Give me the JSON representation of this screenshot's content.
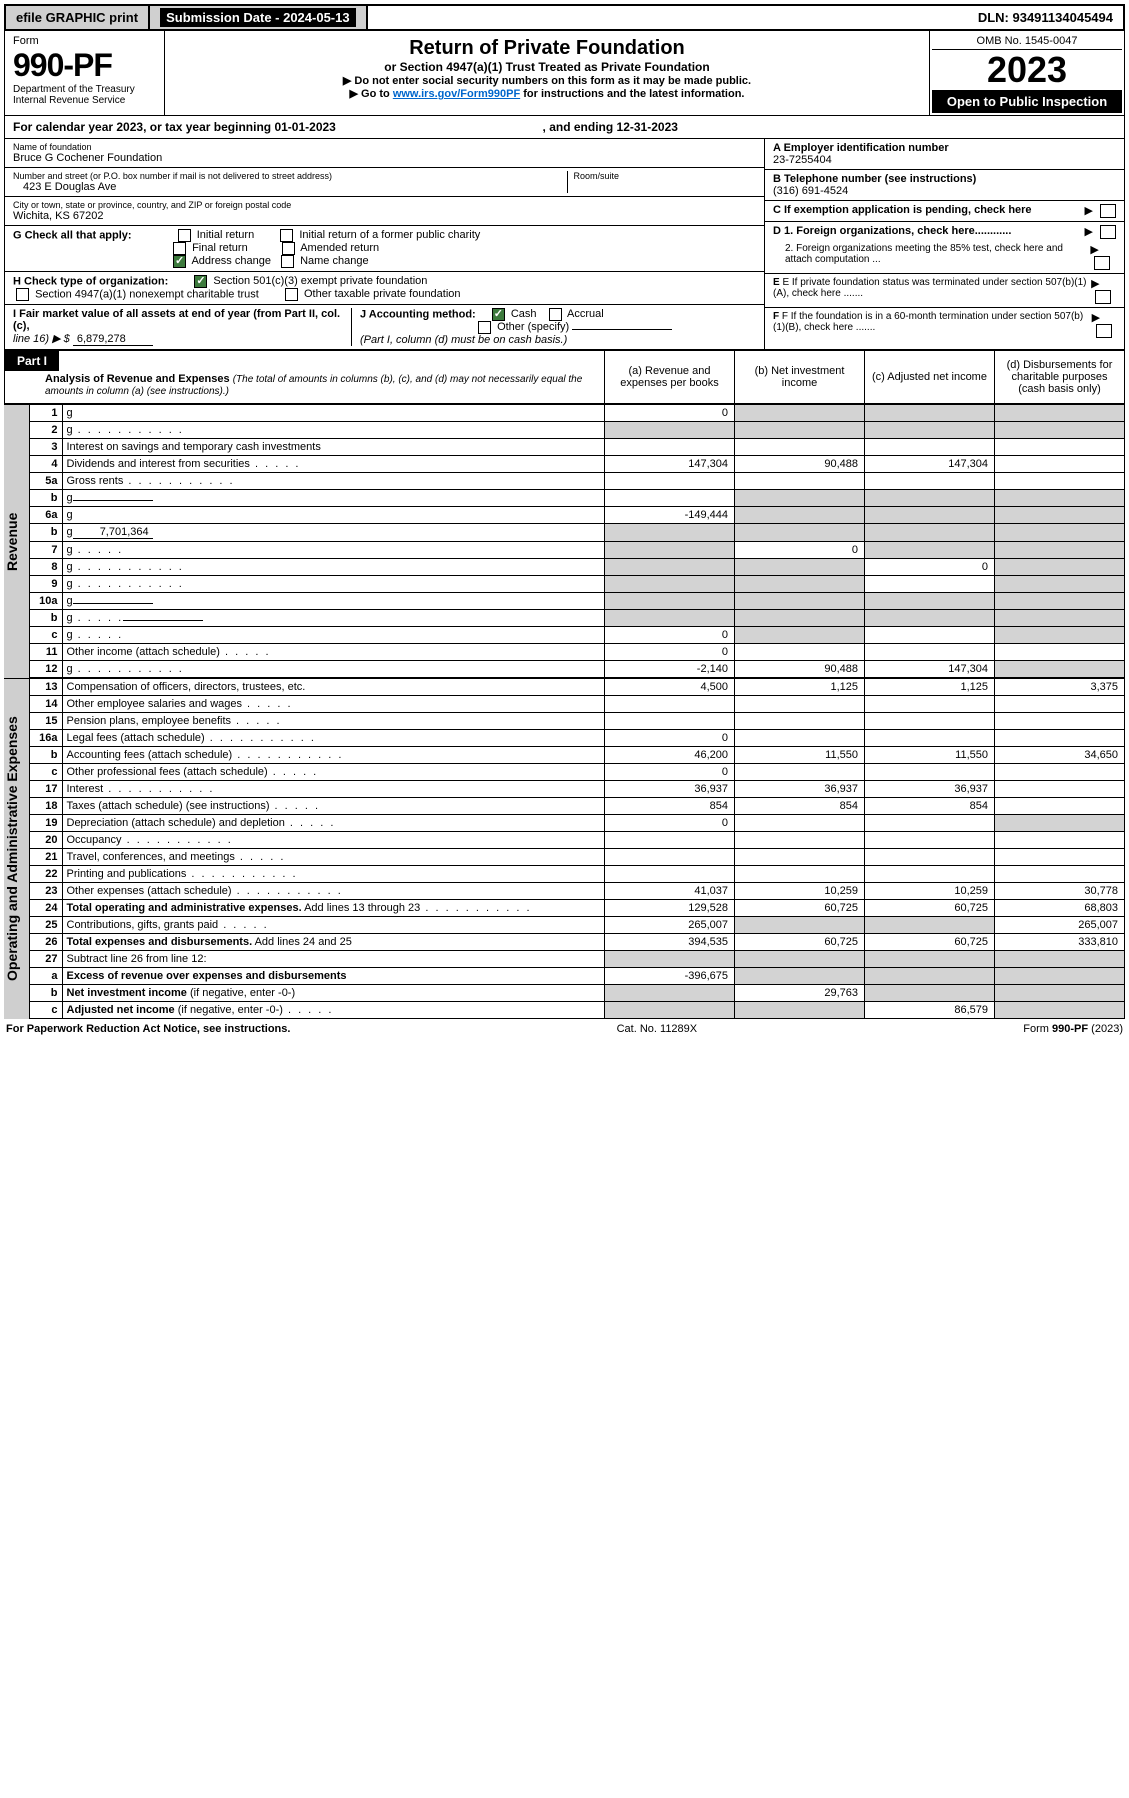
{
  "top": {
    "efile": "efile GRAPHIC print",
    "submission_label": "Submission Date - 2024-05-13",
    "dln": "DLN: 93491134045494"
  },
  "header": {
    "form_label": "Form",
    "form_no": "990-PF",
    "dept1": "Department of the Treasury",
    "dept2": "Internal Revenue Service",
    "title": "Return of Private Foundation",
    "subtitle": "or Section 4947(a)(1) Trust Treated as Private Foundation",
    "note1": "▶ Do not enter social security numbers on this form as it may be made public.",
    "note2_pre": "▶ Go to ",
    "note2_link": "www.irs.gov/Form990PF",
    "note2_post": " for instructions and the latest information.",
    "omb": "OMB No. 1545-0047",
    "year": "2023",
    "open": "Open to Public Inspection"
  },
  "calendar": {
    "pre": "For calendar year 2023, or tax year beginning ",
    "begin": "01-01-2023",
    "mid": ", and ending ",
    "end": "12-31-2023"
  },
  "info": {
    "name_lbl": "Name of foundation",
    "name": "Bruce G Cochener Foundation",
    "street_lbl": "Number and street (or P.O. box number if mail is not delivered to street address)",
    "street": "423 E Douglas Ave",
    "room_lbl": "Room/suite",
    "city_lbl": "City or town, state or province, country, and ZIP or foreign postal code",
    "city": "Wichita, KS  67202",
    "a_lbl": "A Employer identification number",
    "a_val": "23-7255404",
    "b_lbl": "B Telephone number (see instructions)",
    "b_val": "(316) 691-4524",
    "c_lbl": "C If exemption application is pending, check here",
    "g_lbl": "G Check all that apply:",
    "g1": "Initial return",
    "g2": "Initial return of a former public charity",
    "g3": "Final return",
    "g4": "Amended return",
    "g5": "Address change",
    "g6": "Name change",
    "d1": "D 1. Foreign organizations, check here............",
    "d2": "2. Foreign organizations meeting the 85% test, check here and attach computation ...",
    "h_lbl": "H Check type of organization:",
    "h1": "Section 501(c)(3) exempt private foundation",
    "h2": "Section 4947(a)(1) nonexempt charitable trust",
    "h3": "Other taxable private foundation",
    "e_lbl": "E  If private foundation status was terminated under section 507(b)(1)(A), check here .......",
    "i_lbl": "I Fair market value of all assets at end of year (from Part II, col. (c),",
    "i_line": "line 16) ▶ $",
    "i_val": "6,879,278",
    "j_lbl": "J Accounting method:",
    "j1": "Cash",
    "j2": "Accrual",
    "j3": "Other (specify)",
    "j_note": "(Part I, column (d) must be on cash basis.)",
    "f_lbl": "F  If the foundation is in a 60-month termination under section 507(b)(1)(B), check here ......."
  },
  "part1": {
    "badge": "Part I",
    "title": "Analysis of Revenue and Expenses",
    "title_note": "(The total of amounts in columns (b), (c), and (d) may not necessarily equal the amounts in column (a) (see instructions).)",
    "col_a": "(a)   Revenue and expenses per books",
    "col_b": "(b)   Net investment income",
    "col_c": "(c)   Adjusted net income",
    "col_d": "(d)   Disbursements for charitable purposes (cash basis only)"
  },
  "sections": {
    "revenue": "Revenue",
    "opex": "Operating and Administrative Expenses"
  },
  "rows": [
    {
      "n": "1",
      "d": "g",
      "a": "0",
      "b": "g",
      "c": "g"
    },
    {
      "n": "2",
      "d": "g",
      "dots": true,
      "a": "g",
      "b": "g",
      "c": "g"
    },
    {
      "n": "3",
      "d": "Interest on savings and temporary cash investments"
    },
    {
      "n": "4",
      "d": "Dividends and interest from securities",
      "dots": "short",
      "a": "147,304",
      "b": "90,488",
      "c": "147,304"
    },
    {
      "n": "5a",
      "d": "Gross rents",
      "dots": true
    },
    {
      "n": "b",
      "d": "g",
      "inline": true,
      "b": "g",
      "c": "g"
    },
    {
      "n": "6a",
      "d": "g",
      "a": "-149,444",
      "b": "g",
      "c": "g"
    },
    {
      "n": "b",
      "d": "g",
      "inline": true,
      "inline_val": "7,701,364",
      "a": "g",
      "b": "g",
      "c": "g"
    },
    {
      "n": "7",
      "d": "g",
      "dots": "short",
      "a": "g",
      "b": "0",
      "c": "g"
    },
    {
      "n": "8",
      "d": "g",
      "dots": true,
      "a": "g",
      "b": "g",
      "c": "0"
    },
    {
      "n": "9",
      "d": "g",
      "dots": true,
      "a": "g",
      "b": "g"
    },
    {
      "n": "10a",
      "d": "g",
      "inline": true,
      "a": "g",
      "b": "g",
      "c": "g"
    },
    {
      "n": "b",
      "d": "g",
      "dots": "short",
      "inline": true,
      "a": "g",
      "b": "g",
      "c": "g"
    },
    {
      "n": "c",
      "d": "g",
      "dots": "short",
      "a": "0",
      "b": "g"
    },
    {
      "n": "11",
      "d": "Other income (attach schedule)",
      "dots": "short",
      "a": "0"
    },
    {
      "n": "12",
      "d": "g",
      "dots": true,
      "a": "-2,140",
      "b": "90,488",
      "c": "147,304"
    }
  ],
  "expense_rows": [
    {
      "n": "13",
      "d": "Compensation of officers, directors, trustees, etc.",
      "a": "4,500",
      "b": "1,125",
      "c": "1,125",
      "dd": "3,375"
    },
    {
      "n": "14",
      "d": "Other employee salaries and wages",
      "dots": "short"
    },
    {
      "n": "15",
      "d": "Pension plans, employee benefits",
      "dots": "short"
    },
    {
      "n": "16a",
      "d": "Legal fees (attach schedule)",
      "dots": true,
      "a": "0"
    },
    {
      "n": "b",
      "d": "Accounting fees (attach schedule)",
      "dots": true,
      "a": "46,200",
      "b": "11,550",
      "c": "11,550",
      "dd": "34,650"
    },
    {
      "n": "c",
      "d": "Other professional fees (attach schedule)",
      "dots": "short",
      "a": "0"
    },
    {
      "n": "17",
      "d": "Interest",
      "dots": true,
      "a": "36,937",
      "b": "36,937",
      "c": "36,937"
    },
    {
      "n": "18",
      "d": "Taxes (attach schedule) (see instructions)",
      "dots": "short",
      "a": "854",
      "b": "854",
      "c": "854"
    },
    {
      "n": "19",
      "d": "Depreciation (attach schedule) and depletion",
      "dots": "short",
      "a": "0",
      "dd": "g"
    },
    {
      "n": "20",
      "d": "Occupancy",
      "dots": true
    },
    {
      "n": "21",
      "d": "Travel, conferences, and meetings",
      "dots": "short"
    },
    {
      "n": "22",
      "d": "Printing and publications",
      "dots": true
    },
    {
      "n": "23",
      "d": "Other expenses (attach schedule)",
      "dots": true,
      "a": "41,037",
      "b": "10,259",
      "c": "10,259",
      "dd": "30,778"
    },
    {
      "n": "24",
      "d": "<b>Total operating and administrative expenses.</b> Add lines 13 through 23",
      "dots": true,
      "a": "129,528",
      "b": "60,725",
      "c": "60,725",
      "dd": "68,803"
    },
    {
      "n": "25",
      "d": "Contributions, gifts, grants paid",
      "dots": "short",
      "a": "265,007",
      "b": "g",
      "c": "g",
      "dd": "265,007"
    },
    {
      "n": "26",
      "d": "<b>Total expenses and disbursements.</b> Add lines 24 and 25",
      "a": "394,535",
      "b": "60,725",
      "c": "60,725",
      "dd": "333,810"
    },
    {
      "n": "27",
      "d": "Subtract line 26 from line 12:",
      "a": "g",
      "b": "g",
      "c": "g",
      "dd": "g"
    },
    {
      "n": "a",
      "d": "<b>Excess of revenue over expenses and disbursements</b>",
      "a": "-396,675",
      "b": "g",
      "c": "g",
      "dd": "g"
    },
    {
      "n": "b",
      "d": "<b>Net investment income</b> (if negative, enter -0-)",
      "a": "g",
      "b": "29,763",
      "c": "g",
      "dd": "g"
    },
    {
      "n": "c",
      "d": "<b>Adjusted net income</b> (if negative, enter -0-)",
      "dots": "short",
      "a": "g",
      "b": "g",
      "c": "86,579",
      "dd": "g"
    }
  ],
  "footer": {
    "left": "For Paperwork Reduction Act Notice, see instructions.",
    "mid": "Cat. No. 11289X",
    "right": "Form 990-PF (2023)"
  }
}
